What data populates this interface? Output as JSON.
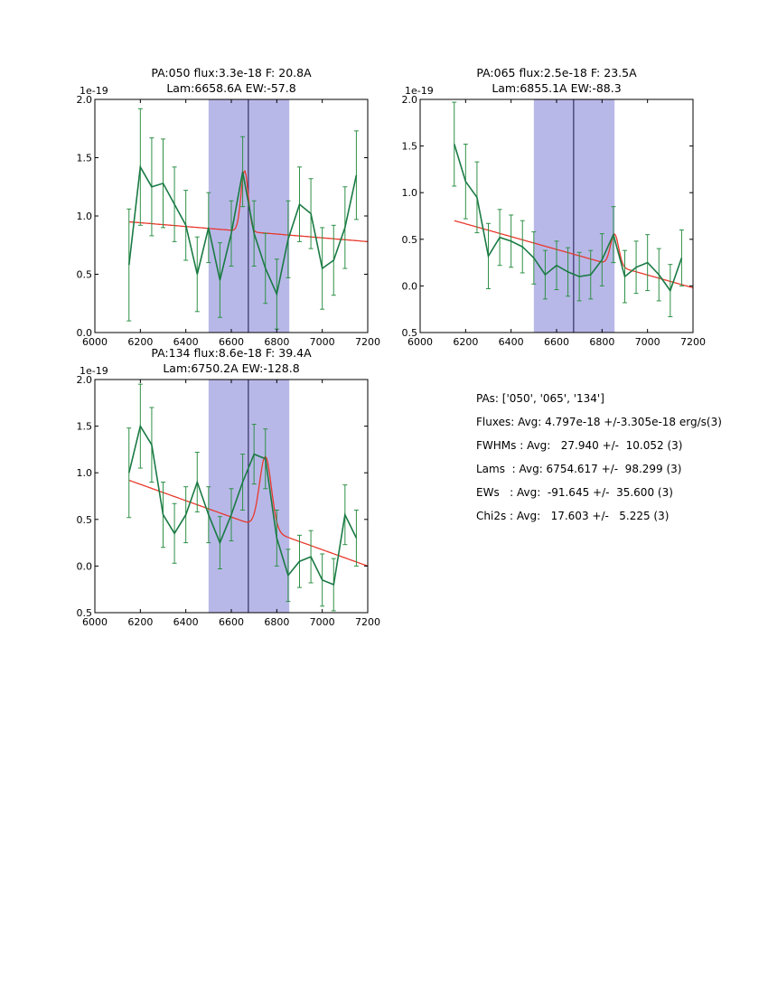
{
  "colors": {
    "background": "#ffffff",
    "data_line": "#1a7a44",
    "error_bar": "#2e9147",
    "fit_line": "#e8392c",
    "band_fill": "#b8b8e8",
    "center_line": "#151548",
    "axis": "#000000"
  },
  "summary": {
    "lines": [
      "PAs: ['050', '065', '134']",
      "Fluxes: Avg: 4.797e-18 +/-3.305e-18 erg/s(3)",
      "FWHMs : Avg:   27.940 +/-  10.052 (3)",
      "Lams  : Avg: 6754.617 +/-  98.299 (3)",
      "EWs   : Avg:  -91.645 +/-  35.600 (3)",
      "Chi2s : Avg:   17.603 +/-   5.225 (3)"
    ]
  },
  "chart_data": [
    {
      "type": "line",
      "name": "PA050",
      "title_line1": "PA:050 flux:3.3e-18 F: 20.8A",
      "title_line2": "Lam:6658.6A EW:-57.8",
      "xlim": [
        6000,
        7200
      ],
      "ylim": [
        0.0,
        2.0
      ],
      "xticks": [
        6000,
        6200,
        6400,
        6600,
        6800,
        7000,
        7200
      ],
      "yticks": [
        0.0,
        0.5,
        1.0,
        1.5,
        2.0
      ],
      "y_offset_label": "1e-19",
      "band": [
        6500,
        6855
      ],
      "center_line_x": 6675,
      "spectrum": {
        "x": [
          6150,
          6200,
          6250,
          6300,
          6350,
          6400,
          6450,
          6500,
          6550,
          6600,
          6650,
          6700,
          6750,
          6800,
          6850,
          6900,
          6950,
          7000,
          7050,
          7100,
          7150
        ],
        "y": [
          0.58,
          1.42,
          1.25,
          1.28,
          1.1,
          0.92,
          0.5,
          0.9,
          0.45,
          0.85,
          1.38,
          0.85,
          0.55,
          0.33,
          0.8,
          1.1,
          1.02,
          0.55,
          0.62,
          0.9,
          1.35
        ],
        "yerr": [
          0.48,
          0.5,
          0.42,
          0.38,
          0.32,
          0.3,
          0.32,
          0.3,
          0.32,
          0.28,
          0.3,
          0.28,
          0.3,
          0.3,
          0.33,
          0.32,
          0.3,
          0.35,
          0.3,
          0.35,
          0.38
        ]
      },
      "fit": {
        "x_start": 6150,
        "x_end": 7200,
        "y_start": 0.95,
        "y_end": 0.78,
        "peak_center": 6658.6,
        "peak_sigma": 16,
        "peak_amp": 0.52
      }
    },
    {
      "type": "line",
      "name": "PA065",
      "title_line1": "PA:065 flux:2.5e-18 F: 23.5A",
      "title_line2": "Lam:6855.1A EW:-88.3",
      "xlim": [
        6000,
        7200
      ],
      "ylim": [
        -0.5,
        2.0
      ],
      "xticks": [
        6000,
        6200,
        6400,
        6600,
        6800,
        7000,
        7200
      ],
      "yticks": [
        -0.5,
        0.0,
        0.5,
        1.0,
        1.5,
        2.0
      ],
      "y_offset_label": "1e-19",
      "band": [
        6500,
        6855
      ],
      "center_line_x": 6675,
      "spectrum": {
        "x": [
          6150,
          6200,
          6250,
          6300,
          6350,
          6400,
          6450,
          6500,
          6550,
          6600,
          6650,
          6700,
          6750,
          6800,
          6850,
          6900,
          6950,
          7000,
          7050,
          7100,
          7150
        ],
        "y": [
          1.52,
          1.12,
          0.95,
          0.32,
          0.52,
          0.48,
          0.42,
          0.3,
          0.12,
          0.22,
          0.15,
          0.1,
          0.12,
          0.28,
          0.55,
          0.1,
          0.2,
          0.25,
          0.12,
          -0.05,
          0.3
        ],
        "yerr": [
          0.45,
          0.4,
          0.38,
          0.35,
          0.3,
          0.28,
          0.28,
          0.28,
          0.26,
          0.26,
          0.26,
          0.26,
          0.26,
          0.28,
          0.3,
          0.28,
          0.28,
          0.3,
          0.28,
          0.28,
          0.3
        ]
      },
      "fit": {
        "x_start": 6150,
        "x_end": 7200,
        "y_start": 0.7,
        "y_end": -0.02,
        "peak_center": 6855.1,
        "peak_sigma": 18,
        "peak_amp": 0.34
      }
    },
    {
      "type": "line",
      "name": "PA134",
      "title_line1": "PA:134 flux:8.6e-18 F: 39.4A",
      "title_line2": "Lam:6750.2A EW:-128.8",
      "xlim": [
        6000,
        7200
      ],
      "ylim": [
        -0.5,
        2.0
      ],
      "xticks": [
        6000,
        6200,
        6400,
        6600,
        6800,
        7000,
        7200
      ],
      "yticks": [
        -0.5,
        0.0,
        0.5,
        1.0,
        1.5,
        2.0
      ],
      "y_offset_label": "1e-19",
      "band": [
        6500,
        6855
      ],
      "center_line_x": 6675,
      "spectrum": {
        "x": [
          6150,
          6200,
          6250,
          6300,
          6350,
          6400,
          6450,
          6500,
          6550,
          6600,
          6650,
          6700,
          6750,
          6800,
          6850,
          6900,
          6950,
          7000,
          7050,
          7100,
          7150
        ],
        "y": [
          1.0,
          1.5,
          1.3,
          0.55,
          0.35,
          0.55,
          0.9,
          0.55,
          0.25,
          0.55,
          0.9,
          1.2,
          1.15,
          0.3,
          -0.1,
          0.05,
          0.1,
          -0.15,
          -0.2,
          0.55,
          0.3
        ],
        "yerr": [
          0.48,
          0.45,
          0.4,
          0.35,
          0.32,
          0.3,
          0.32,
          0.3,
          0.28,
          0.28,
          0.3,
          0.32,
          0.32,
          0.3,
          0.28,
          0.28,
          0.28,
          0.28,
          0.28,
          0.32,
          0.3
        ]
      },
      "fit": {
        "x_start": 6150,
        "x_end": 7200,
        "y_start": 0.92,
        "y_end": 0.0,
        "peak_center": 6750.2,
        "peak_sigma": 26,
        "peak_amp": 0.78
      }
    }
  ]
}
